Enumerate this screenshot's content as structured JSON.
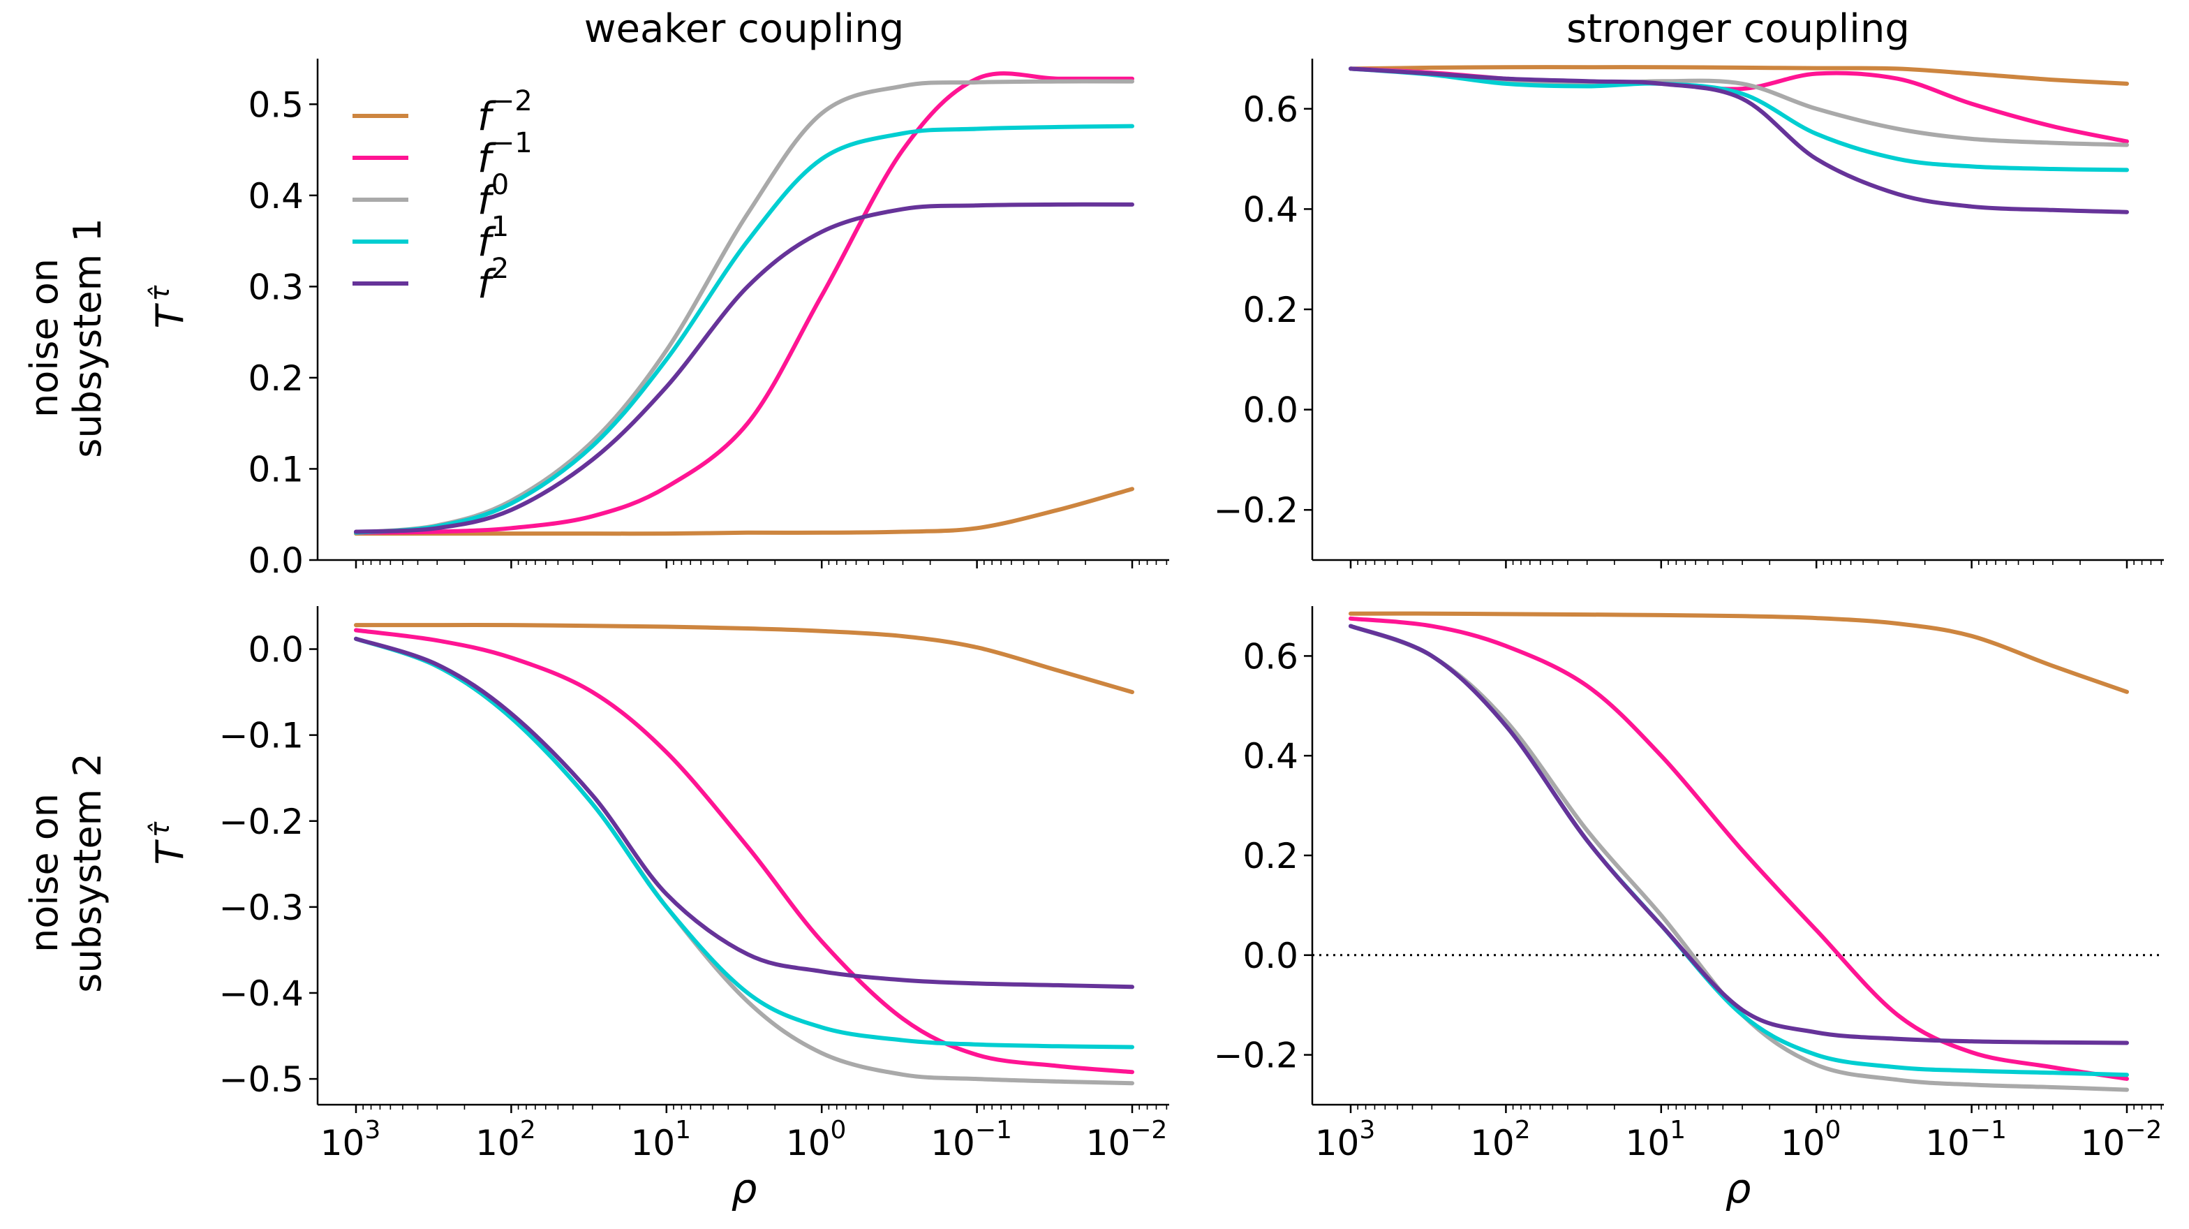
{
  "figure": {
    "col_titles": [
      "weaker coupling",
      "stronger coupling"
    ],
    "row_labels": [
      [
        "noise on",
        "subsystem 1"
      ],
      [
        "noise on",
        "subsystem 2"
      ]
    ],
    "ylabel_main": "T",
    "ylabel_hat": "τ̂",
    "xlabel": "ρ",
    "x_ticks": [
      {
        "value": 1000,
        "base": "10",
        "exp": "3"
      },
      {
        "value": 100,
        "base": "10",
        "exp": "2"
      },
      {
        "value": 10,
        "base": "10",
        "exp": "1"
      },
      {
        "value": 1,
        "base": "10",
        "exp": "0"
      },
      {
        "value": 0.1,
        "base": "10",
        "exp": "−1"
      },
      {
        "value": 0.01,
        "base": "10",
        "exp": "−2"
      }
    ],
    "legend": [
      {
        "name": "f",
        "exp": "−2",
        "color": "#CD853F"
      },
      {
        "name": "f",
        "exp": "−1",
        "color": "#FF1493"
      },
      {
        "name": "f",
        "exp": "0",
        "color": "#A9A9A9"
      },
      {
        "name": "f",
        "exp": "1",
        "color": "#00CED1"
      },
      {
        "name": "f",
        "exp": "2",
        "color": "#663399"
      }
    ]
  },
  "chart_data": [
    {
      "type": "line",
      "panel": "top-left",
      "title": "weaker coupling",
      "xlabel": "",
      "ylabel": "T^τ̂",
      "xscale": "log",
      "xaxis_inverted": true,
      "xlim": [
        1000,
        0.01
      ],
      "ylim": [
        0.0,
        0.55
      ],
      "y_ticks": [
        0.0,
        0.1,
        0.2,
        0.3,
        0.4,
        0.5
      ],
      "y_tick_labels": [
        "0.0",
        "0.1",
        "0.2",
        "0.3",
        "0.4",
        "0.5"
      ],
      "legend": "top-left",
      "x": [
        1000,
        300,
        100,
        30,
        10,
        3,
        1,
        0.3,
        0.1,
        0.03,
        0.01
      ],
      "series": [
        {
          "name": "f^-2",
          "color": "#CD853F",
          "values": [
            0.029,
            0.029,
            0.029,
            0.029,
            0.029,
            0.03,
            0.03,
            0.031,
            0.035,
            0.055,
            0.078
          ]
        },
        {
          "name": "f^-1",
          "color": "#FF1493",
          "values": [
            0.03,
            0.031,
            0.035,
            0.048,
            0.08,
            0.15,
            0.29,
            0.45,
            0.528,
            0.528,
            0.528
          ]
        },
        {
          "name": "f^0",
          "color": "#A9A9A9",
          "values": [
            0.03,
            0.038,
            0.065,
            0.13,
            0.23,
            0.38,
            0.49,
            0.52,
            0.524,
            0.525,
            0.525
          ]
        },
        {
          "name": "f^1",
          "color": "#00CED1",
          "values": [
            0.03,
            0.037,
            0.062,
            0.125,
            0.22,
            0.35,
            0.44,
            0.468,
            0.473,
            0.475,
            0.476
          ]
        },
        {
          "name": "f^2",
          "color": "#663399",
          "values": [
            0.031,
            0.035,
            0.055,
            0.11,
            0.19,
            0.3,
            0.36,
            0.385,
            0.389,
            0.39,
            0.39
          ]
        }
      ]
    },
    {
      "type": "line",
      "panel": "top-right",
      "title": "stronger coupling",
      "xlabel": "",
      "ylabel": "",
      "xscale": "log",
      "xaxis_inverted": true,
      "xlim": [
        1000,
        0.01
      ],
      "ylim": [
        -0.3,
        0.7
      ],
      "y_ticks": [
        -0.2,
        0.0,
        0.2,
        0.4,
        0.6
      ],
      "y_tick_labels": [
        "−0.2",
        "0.0",
        "0.2",
        "0.4",
        "0.6"
      ],
      "x": [
        1000,
        300,
        100,
        30,
        10,
        3,
        1,
        0.3,
        0.1,
        0.03,
        0.01
      ],
      "series": [
        {
          "name": "f^-2",
          "color": "#CD853F",
          "values": [
            0.68,
            0.682,
            0.683,
            0.683,
            0.683,
            0.682,
            0.681,
            0.68,
            0.67,
            0.658,
            0.65
          ]
        },
        {
          "name": "f^-1",
          "color": "#FF1493",
          "values": [
            0.68,
            0.672,
            0.66,
            0.652,
            0.65,
            0.64,
            0.67,
            0.66,
            0.61,
            0.565,
            0.535
          ]
        },
        {
          "name": "f^0",
          "color": "#A9A9A9",
          "values": [
            0.68,
            0.67,
            0.655,
            0.65,
            0.655,
            0.65,
            0.6,
            0.56,
            0.54,
            0.532,
            0.528
          ]
        },
        {
          "name": "f^1",
          "color": "#00CED1",
          "values": [
            0.68,
            0.668,
            0.65,
            0.645,
            0.65,
            0.63,
            0.55,
            0.5,
            0.485,
            0.48,
            0.478
          ]
        },
        {
          "name": "f^2",
          "color": "#663399",
          "values": [
            0.68,
            0.67,
            0.66,
            0.655,
            0.65,
            0.62,
            0.5,
            0.43,
            0.405,
            0.398,
            0.394
          ]
        }
      ]
    },
    {
      "type": "line",
      "panel": "bottom-left",
      "title": "",
      "xlabel": "ρ",
      "ylabel": "T^τ̂",
      "xscale": "log",
      "xaxis_inverted": true,
      "xlim": [
        1000,
        0.01
      ],
      "ylim": [
        -0.53,
        0.05
      ],
      "y_ticks": [
        -0.5,
        -0.4,
        -0.3,
        -0.2,
        -0.1,
        0.0
      ],
      "y_tick_labels": [
        "−0.5",
        "−0.4",
        "−0.3",
        "−0.2",
        "−0.1",
        "0.0"
      ],
      "x": [
        1000,
        300,
        100,
        30,
        10,
        3,
        1,
        0.3,
        0.1,
        0.03,
        0.01
      ],
      "series": [
        {
          "name": "f^-2",
          "color": "#CD853F",
          "values": [
            0.028,
            0.028,
            0.028,
            0.027,
            0.026,
            0.024,
            0.021,
            0.015,
            0.002,
            -0.025,
            -0.05
          ]
        },
        {
          "name": "f^-1",
          "color": "#FF1493",
          "values": [
            0.022,
            0.01,
            -0.01,
            -0.05,
            -0.12,
            -0.23,
            -0.34,
            -0.43,
            -0.472,
            -0.485,
            -0.492
          ]
        },
        {
          "name": "f^0",
          "color": "#A9A9A9",
          "values": [
            0.012,
            -0.02,
            -0.08,
            -0.18,
            -0.3,
            -0.41,
            -0.47,
            -0.495,
            -0.5,
            -0.503,
            -0.505
          ]
        },
        {
          "name": "f^1",
          "color": "#00CED1",
          "values": [
            0.012,
            -0.02,
            -0.08,
            -0.18,
            -0.3,
            -0.4,
            -0.44,
            -0.455,
            -0.46,
            -0.462,
            -0.463
          ]
        },
        {
          "name": "f^2",
          "color": "#663399",
          "values": [
            0.012,
            -0.018,
            -0.075,
            -0.17,
            -0.285,
            -0.355,
            -0.375,
            -0.385,
            -0.389,
            -0.391,
            -0.393
          ]
        }
      ]
    },
    {
      "type": "line",
      "panel": "bottom-right",
      "title": "",
      "xlabel": "ρ",
      "ylabel": "",
      "xscale": "log",
      "xaxis_inverted": true,
      "xlim": [
        1000,
        0.01
      ],
      "ylim": [
        -0.3,
        0.7
      ],
      "y_ticks": [
        -0.2,
        0.0,
        0.2,
        0.4,
        0.6
      ],
      "y_tick_labels": [
        "−0.2",
        "0.0",
        "0.2",
        "0.4",
        "0.6"
      ],
      "reference_line": {
        "y": 0.0,
        "style": "dotted"
      },
      "x": [
        1000,
        300,
        100,
        30,
        10,
        3,
        1,
        0.3,
        0.1,
        0.03,
        0.01
      ],
      "series": [
        {
          "name": "f^-2",
          "color": "#CD853F",
          "values": [
            0.685,
            0.685,
            0.684,
            0.683,
            0.682,
            0.68,
            0.676,
            0.665,
            0.64,
            0.58,
            0.528
          ]
        },
        {
          "name": "f^-1",
          "color": "#FF1493",
          "values": [
            0.675,
            0.66,
            0.62,
            0.54,
            0.4,
            0.21,
            0.05,
            -0.12,
            -0.195,
            -0.225,
            -0.248
          ]
        },
        {
          "name": "f^0",
          "color": "#A9A9A9",
          "values": [
            0.66,
            0.6,
            0.47,
            0.25,
            0.08,
            -0.12,
            -0.22,
            -0.25,
            -0.26,
            -0.265,
            -0.27
          ]
        },
        {
          "name": "f^1",
          "color": "#00CED1",
          "values": [
            0.66,
            0.6,
            0.46,
            0.23,
            0.06,
            -0.12,
            -0.2,
            -0.225,
            -0.232,
            -0.236,
            -0.24
          ]
        },
        {
          "name": "f^2",
          "color": "#663399",
          "values": [
            0.66,
            0.6,
            0.46,
            0.23,
            0.06,
            -0.11,
            -0.155,
            -0.168,
            -0.173,
            -0.175,
            -0.176
          ]
        }
      ]
    }
  ]
}
